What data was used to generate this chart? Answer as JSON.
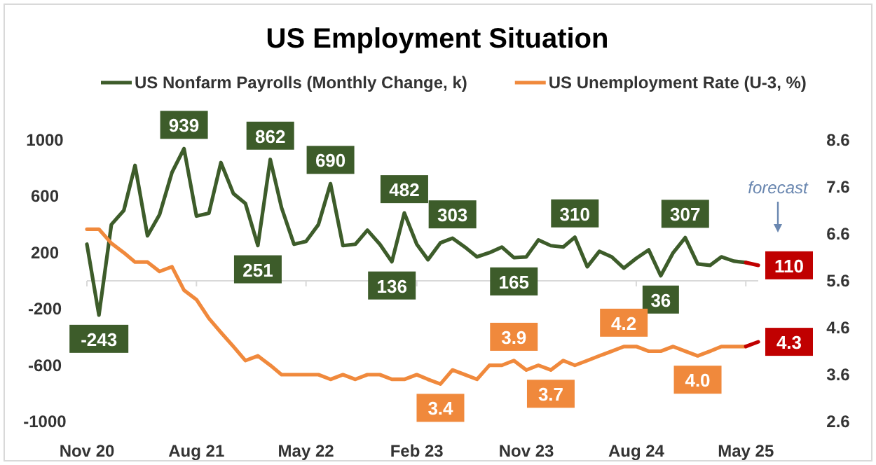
{
  "chart_data": {
    "type": "line",
    "title": "US Employment Situation",
    "legend": "top",
    "x": [
      "2020-11",
      "2020-12",
      "2021-01",
      "2021-02",
      "2021-03",
      "2021-04",
      "2021-05",
      "2021-06",
      "2021-07",
      "2021-08",
      "2021-09",
      "2021-10",
      "2021-11",
      "2021-12",
      "2022-01",
      "2022-02",
      "2022-03",
      "2022-04",
      "2022-05",
      "2022-06",
      "2022-07",
      "2022-08",
      "2022-09",
      "2022-10",
      "2022-11",
      "2022-12",
      "2023-01",
      "2023-02",
      "2023-03",
      "2023-04",
      "2023-05",
      "2023-06",
      "2023-07",
      "2023-08",
      "2023-09",
      "2023-10",
      "2023-11",
      "2023-12",
      "2024-01",
      "2024-02",
      "2024-03",
      "2024-04",
      "2024-05",
      "2024-06",
      "2024-07",
      "2024-08",
      "2024-09",
      "2024-10",
      "2024-11",
      "2024-12",
      "2025-01",
      "2025-02",
      "2025-03",
      "2025-04",
      "2025-05"
    ],
    "xlim": [
      "2020-11",
      "2025-06"
    ],
    "xticks": [
      {
        "value": "2020-11",
        "label": "Nov 20"
      },
      {
        "value": "2021-08",
        "label": "Aug 21"
      },
      {
        "value": "2022-05",
        "label": "May 22"
      },
      {
        "value": "2023-02",
        "label": "Feb 23"
      },
      {
        "value": "2023-11",
        "label": "Nov 23"
      },
      {
        "value": "2024-08",
        "label": "Aug 24"
      },
      {
        "value": "2025-05",
        "label": "May 25"
      }
    ],
    "ylim": [
      -1000,
      1000
    ],
    "yticks": [
      -1000,
      -600,
      -200,
      200,
      600,
      1000
    ],
    "y2lim": [
      2.6,
      8.6
    ],
    "y2ticks": [
      2.6,
      3.6,
      4.6,
      5.6,
      6.6,
      7.6,
      8.6
    ],
    "series": [
      {
        "name": "US Nonfarm Payrolls (Monthly Change, k)",
        "color": "#3d5c2a",
        "values": [
          260,
          -243,
          400,
          500,
          820,
          320,
          470,
          770,
          939,
          460,
          480,
          840,
          620,
          550,
          251,
          862,
          520,
          260,
          280,
          400,
          690,
          250,
          260,
          360,
          260,
          136,
          482,
          260,
          150,
          270,
          303,
          240,
          170,
          200,
          240,
          165,
          170,
          290,
          250,
          240,
          310,
          100,
          210,
          170,
          90,
          160,
          220,
          36,
          200,
          307,
          120,
          110,
          170,
          140,
          130
        ],
        "value_labels": [
          null,
          "-243",
          null,
          null,
          null,
          null,
          null,
          null,
          "939",
          null,
          null,
          null,
          null,
          null,
          "251",
          "862",
          null,
          null,
          null,
          null,
          "690",
          null,
          null,
          null,
          null,
          "136",
          "482",
          null,
          null,
          null,
          "303",
          null,
          null,
          null,
          null,
          "165",
          null,
          null,
          null,
          null,
          "310",
          null,
          null,
          null,
          null,
          null,
          null,
          "36",
          null,
          "307",
          null,
          null,
          null,
          null,
          null
        ]
      },
      {
        "name": "US Unemployment Rate (U-3, %)",
        "color": "#f0893c",
        "axis": "y2",
        "values": [
          6.7,
          6.7,
          6.4,
          6.2,
          6.0,
          6.0,
          5.8,
          5.9,
          5.4,
          5.2,
          4.8,
          4.5,
          4.2,
          3.9,
          4.0,
          3.8,
          3.6,
          3.6,
          3.6,
          3.6,
          3.5,
          3.6,
          3.5,
          3.6,
          3.6,
          3.5,
          3.5,
          3.6,
          3.5,
          3.4,
          3.7,
          3.6,
          3.5,
          3.8,
          3.8,
          3.9,
          3.7,
          3.8,
          3.7,
          3.9,
          3.8,
          3.9,
          4.0,
          4.1,
          4.2,
          4.2,
          4.1,
          4.1,
          4.2,
          4.1,
          4.0,
          4.1,
          4.2,
          4.2,
          4.2
        ],
        "value_labels": [
          null,
          null,
          null,
          null,
          null,
          null,
          null,
          null,
          null,
          null,
          null,
          null,
          null,
          null,
          null,
          null,
          null,
          null,
          null,
          null,
          null,
          null,
          null,
          null,
          null,
          null,
          null,
          null,
          null,
          "3.4",
          null,
          null,
          null,
          null,
          null,
          "3.9",
          null,
          null,
          "3.7",
          null,
          null,
          null,
          null,
          null,
          "4.2",
          null,
          null,
          null,
          null,
          null,
          "4.0",
          null,
          null,
          null,
          null
        ]
      },
      {
        "color": "#c00000",
        "x": [
          "2025-05",
          "2025-06"
        ],
        "values": [
          130,
          110
        ],
        "value_labels": [
          null,
          "110"
        ]
      },
      {
        "color": "#c00000",
        "axis": "y2",
        "x": [
          "2025-05",
          "2025-06"
        ],
        "values": [
          4.2,
          4.3
        ],
        "value_labels": [
          null,
          "4.3"
        ]
      }
    ],
    "annotations": [
      "forecast"
    ]
  }
}
